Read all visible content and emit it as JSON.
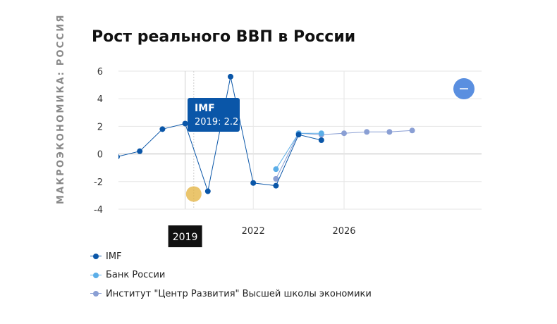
{
  "side_label": "МАКРОЭКОНОМИКА: РОССИЯ",
  "title": "Рост реального ВВП в России",
  "chart_data": {
    "type": "line",
    "title": "Рост реального ВВП в России",
    "xlim": [
      2016.2,
      2031.5
    ],
    "ylim": [
      -4,
      6
    ],
    "y_ticks": [
      6,
      4,
      2,
      0,
      -2,
      -4
    ],
    "x_ticks": [
      2022,
      2026
    ],
    "grid": true,
    "legend": "bottom-left",
    "series": [
      {
        "name": "IMF",
        "color": "#0a56a8",
        "points": [
          [
            2016,
            -0.2
          ],
          [
            2017,
            0.2
          ],
          [
            2018,
            1.8
          ],
          [
            2019,
            2.2
          ],
          [
            2020,
            -2.7
          ],
          [
            2021,
            5.6
          ],
          [
            2022,
            -2.1
          ],
          [
            2023,
            -2.3
          ],
          [
            2024,
            1.4
          ],
          [
            2025,
            1.0
          ]
        ]
      },
      {
        "name": "Банк России",
        "color": "#5baee8",
        "points": [
          [
            2023,
            -1.1
          ],
          [
            2024,
            1.5
          ],
          [
            2025,
            1.5
          ]
        ]
      },
      {
        "name": "Институт \"Центр Развития\" Высшей школы экономики",
        "color": "#8a9fd4",
        "points": [
          [
            2023,
            -1.8
          ],
          [
            2024,
            1.5
          ],
          [
            2025,
            1.4
          ],
          [
            2026,
            1.5
          ],
          [
            2027,
            1.6
          ],
          [
            2028,
            1.6
          ],
          [
            2029,
            1.7
          ]
        ]
      }
    ],
    "tooltip": {
      "series": "IMF",
      "text": "2019: 2.2"
    },
    "crosshair_label": "2019"
  }
}
